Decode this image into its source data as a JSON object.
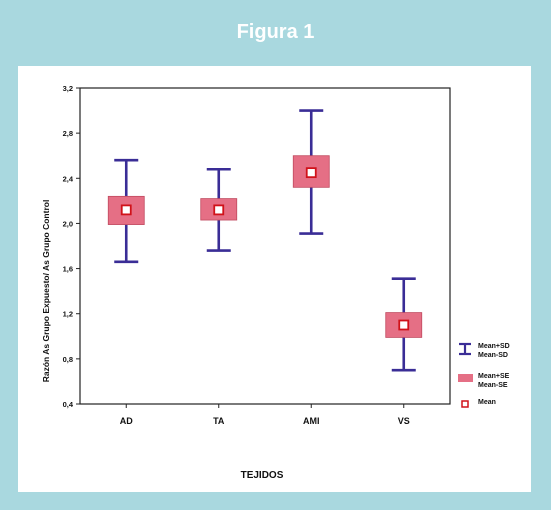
{
  "figure_title": "Figura 1",
  "colors": {
    "frame": "#a9d8df",
    "whisker": "#3a2d96",
    "se_box": "#e56f85",
    "mean_marker": "#d0121a"
  },
  "chart_data": {
    "type": "box",
    "xlabel": "TEJIDOS",
    "ylabel": "Razón As Grupo Expuesto/ As Grupo Control",
    "ylim": [
      0.4,
      3.2
    ],
    "yticks": [
      "0,4",
      "0,8",
      "1,2",
      "1,6",
      "2,0",
      "2,4",
      "2,8",
      "3,2"
    ],
    "categories": [
      "AD",
      "TA",
      "AMI",
      "VS"
    ],
    "series": [
      {
        "name": "Mean±SD",
        "low": [
          1.66,
          1.76,
          1.91,
          0.7
        ],
        "high": [
          2.56,
          2.48,
          3.0,
          1.51
        ]
      },
      {
        "name": "Mean±SE",
        "low": [
          1.99,
          2.03,
          2.32,
          0.99
        ],
        "high": [
          2.24,
          2.22,
          2.6,
          1.21
        ]
      },
      {
        "name": "Mean",
        "values": [
          2.12,
          2.12,
          2.45,
          1.1
        ]
      }
    ],
    "legend": {
      "position": "right",
      "entries": [
        {
          "line1": "Mean+SD",
          "line2": "Mean-SD"
        },
        {
          "line1": "Mean+SE",
          "line2": "Mean-SE"
        },
        {
          "line1": "Mean",
          "line2": ""
        }
      ]
    },
    "grid": false
  }
}
